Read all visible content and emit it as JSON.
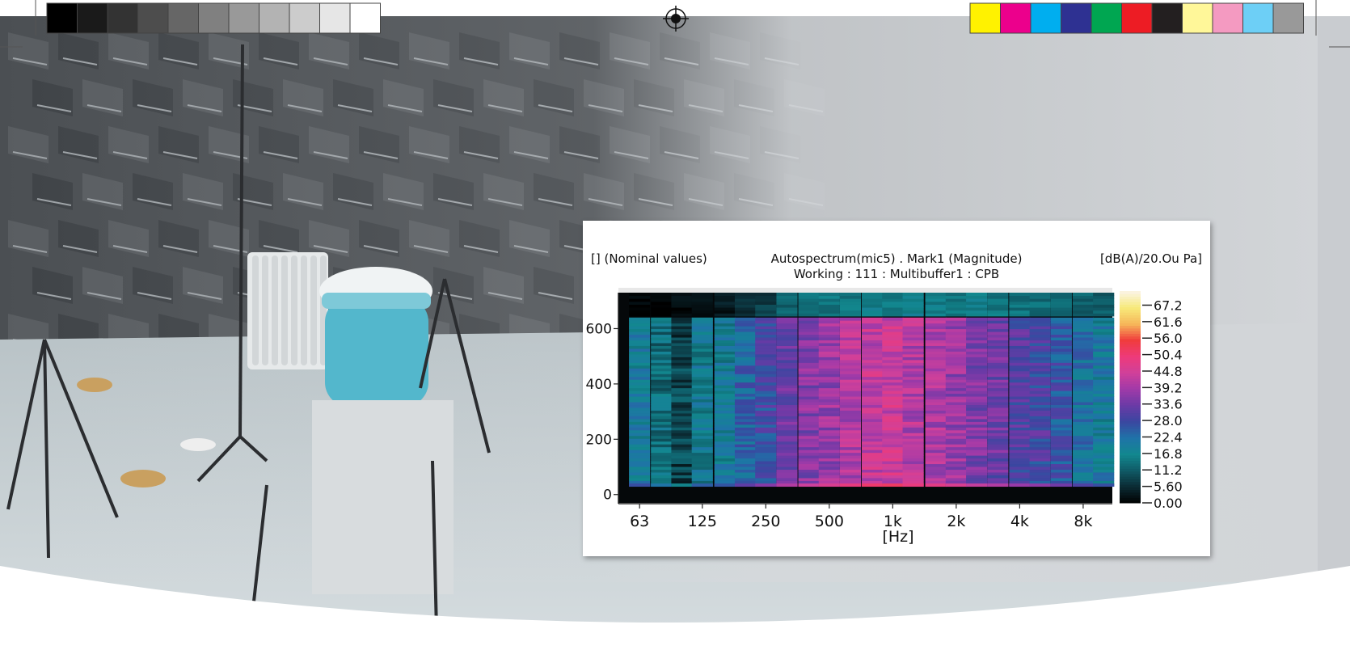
{
  "print_marks": {
    "grayscale_swatches": [
      "#000000",
      "#1a1a1a",
      "#333333",
      "#4d4d4d",
      "#666666",
      "#808080",
      "#999999",
      "#b3b3b3",
      "#cccccc",
      "#e6e6e6",
      "#ffffff"
    ],
    "color_swatches": [
      "#fff200",
      "#ec008c",
      "#00aeef",
      "#2e3192",
      "#00a651",
      "#ed1c24",
      "#231f20",
      "#fff799",
      "#f49ac1",
      "#6dcff6",
      "#999999"
    ]
  },
  "chart_data": {
    "type": "heatmap",
    "title": "Autospectrum(mic5) . Mark1 (Magnitude)",
    "subtitle": "Working : 111 : Multibuffer1 : CPB",
    "y_unit_label": "[] (Nominal values)",
    "colorbar_unit_label": "[dB(A)/20.Ou Pa]",
    "xlabel": "[Hz]",
    "x_scale": "log",
    "x_ticks": [
      "63",
      "125",
      "250",
      "500",
      "1k",
      "2k",
      "4k",
      "8k"
    ],
    "x_tick_values": [
      63,
      125,
      250,
      500,
      1000,
      2000,
      4000,
      8000
    ],
    "x_range": [
      50,
      11000
    ],
    "y_ticks": [
      0,
      200,
      400,
      600
    ],
    "y_range": [
      -30,
      730
    ],
    "colorbar_ticks": [
      "67.2",
      "61.6",
      "56.0",
      "50.4",
      "44.8",
      "39.2",
      "33.6",
      "28.0",
      "22.4",
      "16.8",
      "11.2",
      "5.60",
      "0.00"
    ],
    "colorbar_range": [
      0,
      72
    ],
    "colormap": [
      "#000000",
      "#0b2a33",
      "#0f5a66",
      "#12888f",
      "#1f73a8",
      "#3a47a0",
      "#6a3aa6",
      "#a03aa8",
      "#d0409a",
      "#ee3a7a",
      "#f03c3c",
      "#f6b75a",
      "#f7ea7a",
      "#fbf4e6"
    ],
    "band_centers_hz": [
      63,
      80,
      100,
      125,
      160,
      200,
      250,
      315,
      400,
      500,
      630,
      800,
      1000,
      1250,
      1600,
      2000,
      2500,
      3150,
      4000,
      5000,
      6300,
      8000,
      10000
    ],
    "band_levels_db_main": [
      19,
      14,
      8,
      17,
      18,
      24,
      28,
      33,
      36,
      38,
      41,
      43,
      44,
      41,
      40,
      38,
      35,
      33,
      30,
      29,
      26,
      22,
      19
    ],
    "band_levels_db_top": [
      0,
      0,
      1,
      2,
      3,
      5,
      8,
      12,
      13,
      14,
      15,
      16,
      16,
      17,
      16,
      15,
      16,
      15,
      14,
      13,
      13,
      12,
      12
    ],
    "main_y_range": [
      30,
      640
    ],
    "top_y_range": [
      645,
      730
    ],
    "bottom_edge_y_range": [
      -30,
      30
    ]
  }
}
